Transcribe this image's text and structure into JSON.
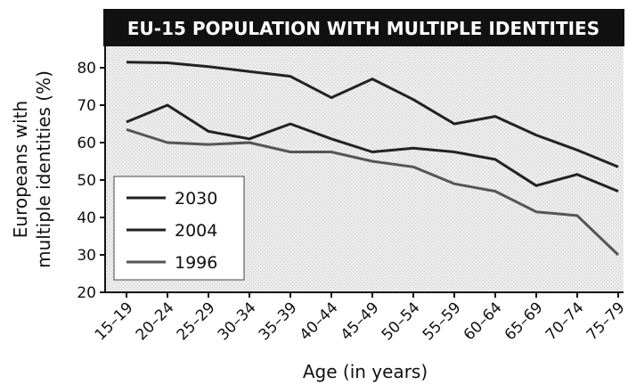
{
  "chart_data": {
    "type": "line",
    "title": "EU-15 POPULATION WITH MULTIPLE IDENTITIES",
    "xlabel": "Age (in years)",
    "ylabel_line1": "Europeans with",
    "ylabel_line2": "multiple identities (%)",
    "categories": [
      "15–19",
      "20–24",
      "25–29",
      "30–34",
      "35–39",
      "40–44",
      "45–49",
      "50–54",
      "55–59",
      "60–64",
      "65–69",
      "70–74",
      "75–79"
    ],
    "ylim": [
      20,
      85
    ],
    "yticks": [
      "80",
      "70",
      "60",
      "50",
      "40",
      "30",
      "20"
    ],
    "legend_position": "bottom-left",
    "grid": false,
    "colors": {
      "title_bg": "#111111",
      "plot_bg": "#e6e6e6",
      "line": "#222222",
      "line_1996": "#555555"
    },
    "series": [
      {
        "name": "2030",
        "values": [
          81.5,
          81.3,
          80.3,
          79,
          77.7,
          72,
          77,
          71.5,
          65,
          67,
          62,
          58,
          53.5
        ]
      },
      {
        "name": "2004",
        "values": [
          65.5,
          70,
          63,
          61,
          65,
          61,
          57.5,
          58.5,
          57.5,
          55.5,
          48.5,
          51.5,
          47
        ]
      },
      {
        "name": "1996",
        "values": [
          63.5,
          60,
          59.5,
          60,
          57.5,
          57.5,
          55,
          53.5,
          49,
          47,
          41.5,
          40.5,
          30
        ]
      }
    ]
  }
}
